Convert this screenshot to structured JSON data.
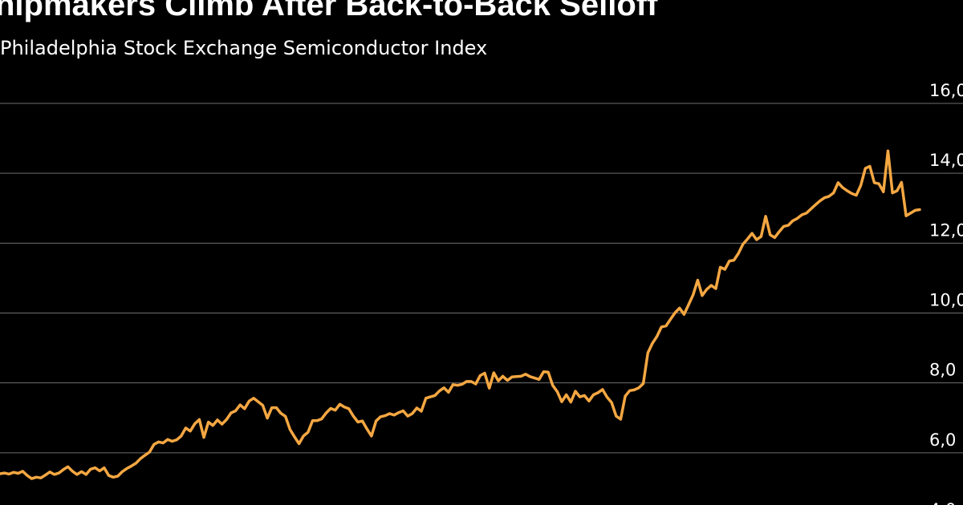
{
  "title": "hipmakers Climb After Back-to-Back Selloff",
  "subtitle": "Philadelphia Stock Exchange Semiconductor Index",
  "colors": {
    "background": "#000000",
    "line": "#f5a742",
    "grid": "#6e6e6e",
    "text": "#ffffff"
  },
  "chart_data": {
    "type": "line",
    "title": "hipmakers Climb After Back-to-Back Selloff",
    "subtitle": "Philadelphia Stock Exchange Semiconductor Index",
    "ylim": [
      4000,
      16000
    ],
    "yticks": [
      4000,
      6000,
      8000,
      10000,
      12000,
      14000,
      16000
    ],
    "ytick_labels": [
      "4,0",
      "6,0",
      "8,0",
      "10,0",
      "12,0",
      "14,0",
      "16,0"
    ],
    "grid": true,
    "legend": "none",
    "series": [
      {
        "values": [
          5400,
          5420,
          5390,
          5440,
          5410,
          5470,
          5350,
          5260,
          5300,
          5280,
          5360,
          5450,
          5380,
          5420,
          5520,
          5600,
          5470,
          5380,
          5460,
          5380,
          5530,
          5570,
          5480,
          5570,
          5350,
          5300,
          5330,
          5460,
          5550,
          5620,
          5700,
          5830,
          5930,
          6020,
          6240,
          6310,
          6280,
          6380,
          6330,
          6370,
          6480,
          6710,
          6620,
          6830,
          6950,
          6440,
          6880,
          6780,
          6940,
          6820,
          6950,
          7140,
          7200,
          7370,
          7260,
          7480,
          7560,
          7460,
          7360,
          6990,
          7290,
          7290,
          7130,
          7040,
          6670,
          6460,
          6260,
          6480,
          6590,
          6920,
          6920,
          6970,
          7140,
          7270,
          7220,
          7390,
          7310,
          7260,
          7050,
          6880,
          6910,
          6680,
          6480,
          6910,
          7030,
          7060,
          7120,
          7080,
          7150,
          7200,
          7050,
          7120,
          7280,
          7190,
          7560,
          7600,
          7640,
          7770,
          7860,
          7730,
          7950,
          7930,
          7960,
          8040,
          8040,
          7970,
          8210,
          8280,
          7850,
          8290,
          8060,
          8190,
          8070,
          8170,
          8180,
          8190,
          8250,
          8180,
          8140,
          8100,
          8320,
          8310,
          7930,
          7750,
          7460,
          7660,
          7450,
          7760,
          7600,
          7640,
          7480,
          7660,
          7720,
          7810,
          7590,
          7440,
          7050,
          6960,
          7620,
          7780,
          7800,
          7860,
          7980,
          8860,
          9130,
          9330,
          9600,
          9630,
          9820,
          10010,
          10140,
          9960,
          10240,
          10520,
          10940,
          10500,
          10680,
          10790,
          10700,
          11310,
          11250,
          11490,
          11510,
          11710,
          11970,
          12120,
          12280,
          12100,
          12190,
          12770,
          12240,
          12160,
          12330,
          12480,
          12510,
          12640,
          12710,
          12810,
          12860,
          12980,
          13100,
          13210,
          13300,
          13340,
          13440,
          13730,
          13590,
          13500,
          13420,
          13370,
          13650,
          14140,
          14200,
          13730,
          13700,
          13470,
          14640,
          13440,
          13500,
          13740,
          12780,
          12860,
          12940,
          12960
        ]
      }
    ]
  }
}
